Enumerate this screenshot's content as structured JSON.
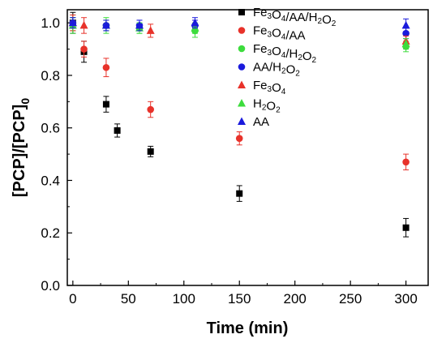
{
  "chart_data": {
    "type": "scatter",
    "xlabel": "Time (min)",
    "ylabel": "[PCP]/[PCP]",
    "ylabel_subscript": "0",
    "xlim": [
      -5,
      320
    ],
    "ylim": [
      0,
      1.05
    ],
    "xticks": [
      0,
      50,
      100,
      150,
      200,
      250,
      300
    ],
    "yticks": [
      0.0,
      0.2,
      0.4,
      0.6,
      0.8,
      1.0
    ],
    "xtick_labels": [
      "0",
      "50",
      "100",
      "150",
      "200",
      "250",
      "300"
    ],
    "ytick_labels": [
      "0.0",
      "0.2",
      "0.4",
      "0.6",
      "0.8",
      "1.0"
    ],
    "grid": false,
    "legend_position": "top-right",
    "series": [
      {
        "name": "Fe3O4/AA/H2O2",
        "legend_parts": [
          [
            "Fe",
            ""
          ],
          [
            "3",
            "sub"
          ],
          [
            "O",
            ""
          ],
          [
            "4",
            "sub"
          ],
          [
            "/AA/H",
            ""
          ],
          [
            "2",
            "sub"
          ],
          [
            "O",
            ""
          ],
          [
            "2",
            "sub"
          ]
        ],
        "color": "#000000",
        "marker": "square",
        "x": [
          0,
          10,
          30,
          40,
          70,
          150,
          300
        ],
        "y": [
          1.0,
          0.89,
          0.69,
          0.59,
          0.51,
          0.35,
          0.22
        ],
        "err": [
          0.04,
          0.04,
          0.03,
          0.025,
          0.02,
          0.03,
          0.035
        ]
      },
      {
        "name": "Fe3O4/AA",
        "legend_parts": [
          [
            "Fe",
            ""
          ],
          [
            "3",
            "sub"
          ],
          [
            "O",
            ""
          ],
          [
            "4",
            "sub"
          ],
          [
            "/AA",
            ""
          ]
        ],
        "color": "#e8322a",
        "marker": "circle",
        "x": [
          0,
          10,
          30,
          70,
          150,
          300
        ],
        "y": [
          1.0,
          0.9,
          0.83,
          0.67,
          0.56,
          0.47
        ],
        "err": [
          0.03,
          0.03,
          0.035,
          0.03,
          0.025,
          0.03
        ]
      },
      {
        "name": "Fe3O4/H2O2",
        "legend_parts": [
          [
            "Fe",
            ""
          ],
          [
            "3",
            "sub"
          ],
          [
            "O",
            ""
          ],
          [
            "4",
            "sub"
          ],
          [
            "/H",
            ""
          ],
          [
            "2",
            "sub"
          ],
          [
            "O",
            ""
          ],
          [
            "2",
            "sub"
          ]
        ],
        "color": "#3ddc3d",
        "marker": "circle",
        "x": [
          0,
          30,
          60,
          110,
          300
        ],
        "y": [
          1.0,
          0.99,
          0.98,
          0.97,
          0.91
        ],
        "err": [
          0.03,
          0.03,
          0.02,
          0.025,
          0.02
        ]
      },
      {
        "name": "AA/H2O2",
        "legend_parts": [
          [
            "AA/H",
            ""
          ],
          [
            "2",
            "sub"
          ],
          [
            "O",
            ""
          ],
          [
            "2",
            "sub"
          ]
        ],
        "color": "#1a1adc",
        "marker": "circle",
        "x": [
          0,
          30,
          60,
          110,
          300
        ],
        "y": [
          1.0,
          0.99,
          0.99,
          0.99,
          0.96
        ],
        "err": [
          0.02,
          0.02,
          0.02,
          0.02,
          0.02
        ]
      },
      {
        "name": "Fe3O4",
        "legend_parts": [
          [
            "Fe",
            ""
          ],
          [
            "3",
            "sub"
          ],
          [
            "O",
            ""
          ],
          [
            "4",
            "sub"
          ]
        ],
        "color": "#e8322a",
        "marker": "triangle",
        "x": [
          0,
          10,
          70,
          300
        ],
        "y": [
          1.0,
          0.99,
          0.97,
          0.93
        ],
        "err": [
          0.03,
          0.03,
          0.025,
          0.02
        ]
      },
      {
        "name": "H2O2",
        "legend_parts": [
          [
            "H",
            ""
          ],
          [
            "2",
            "sub"
          ],
          [
            "O",
            ""
          ],
          [
            "2",
            "sub"
          ]
        ],
        "color": "#3ddc3d",
        "marker": "triangle",
        "x": [
          0,
          30,
          60,
          110,
          300
        ],
        "y": [
          0.99,
          0.99,
          0.98,
          0.98,
          0.92
        ],
        "err": [
          0.03,
          0.02,
          0.02,
          0.02,
          0.02
        ]
      },
      {
        "name": "AA",
        "legend_parts": [
          [
            "AA",
            ""
          ]
        ],
        "color": "#1a1adc",
        "marker": "triangle",
        "x": [
          0,
          30,
          60,
          110,
          300
        ],
        "y": [
          1.0,
          0.99,
          0.99,
          1.0,
          0.99
        ],
        "err": [
          0.02,
          0.02,
          0.02,
          0.02,
          0.025
        ]
      }
    ]
  }
}
